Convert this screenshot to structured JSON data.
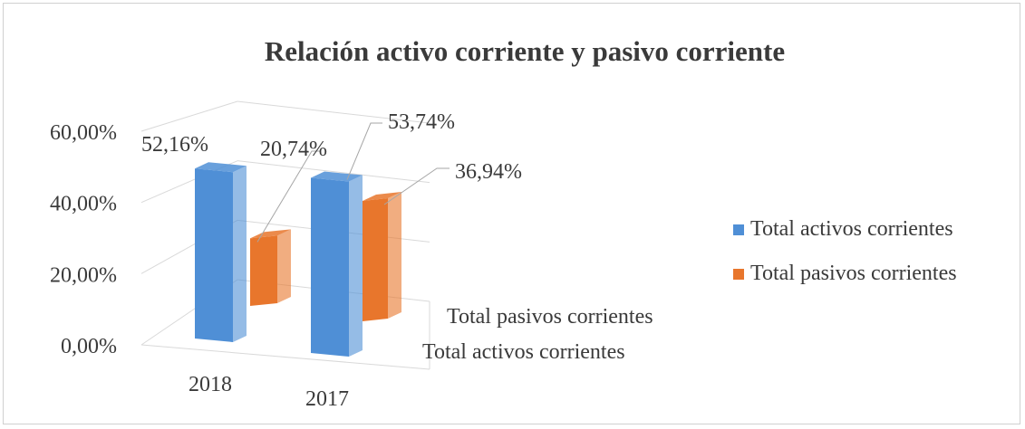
{
  "chart_data": {
    "type": "bar",
    "title": "Relación activo corriente y pasivo corriente",
    "categories": [
      "2018",
      "2017"
    ],
    "series": [
      {
        "name": "Total activos corrientes",
        "values": [
          52.16,
          53.74
        ],
        "labels": [
          "52,16%",
          "53,74%"
        ],
        "color": "#4f8fd6"
      },
      {
        "name": "Total pasivos corrientes",
        "values": [
          20.74,
          36.94
        ],
        "labels": [
          "20,74%",
          "36,94%"
        ],
        "color": "#e8762c"
      }
    ],
    "depth_labels": [
      "Total pasivos corrientes",
      "Total activos corrientes"
    ],
    "y_ticks": [
      "0,00%",
      "20,00%",
      "40,00%",
      "60,00%"
    ],
    "ylim": [
      0,
      60
    ],
    "grid": true,
    "legend_position": "right",
    "view": "3d-column"
  }
}
